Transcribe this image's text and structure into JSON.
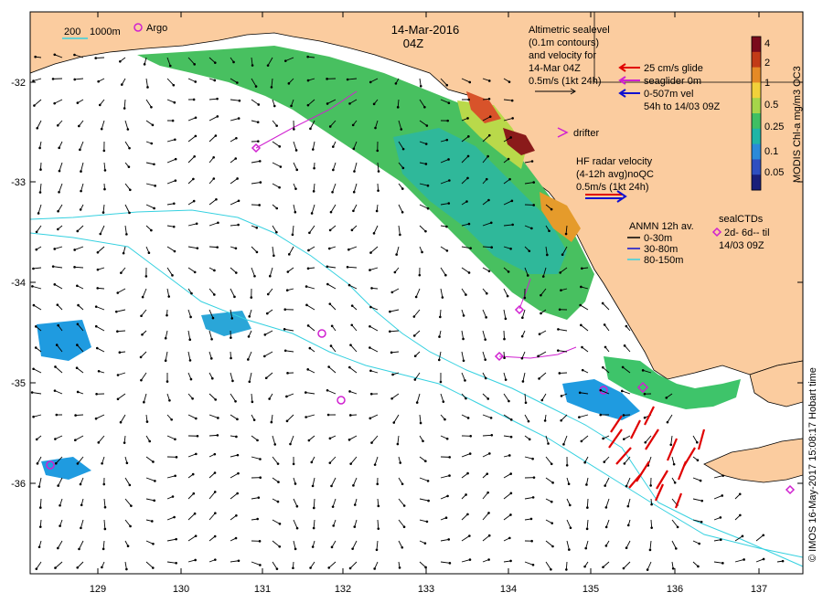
{
  "map": {
    "date_line": "14-Mar-2016",
    "time_line": "04Z",
    "lon_ticks": [
      "129",
      "130",
      "131",
      "132",
      "133",
      "134",
      "135",
      "136",
      "137"
    ],
    "lat_ticks": [
      "-32",
      "-33",
      "-34",
      "-35",
      "-36"
    ],
    "land_color": "#fbcc9f",
    "ocean_color": "#ffffff",
    "isobath_color": "#36d1e0"
  },
  "legend": {
    "isobath_200": "200",
    "isobath_1000": "1000m",
    "argo": "Argo",
    "alt_lines": [
      "Altimetric sealevel",
      "(0.1m contours)",
      "and velocity for",
      "14-Mar 04Z",
      "0.5m/s (1kt 24h)"
    ],
    "glide_scale": "25 cm/s glide",
    "seaglider": "seaglider 0m",
    "vel_lines": [
      "0-507m vel",
      "54h to 14/03 09Z"
    ],
    "drifter": "drifter",
    "hf_lines": [
      "HF radar velocity",
      "(4-12h avg)noQC",
      "0.5m/s (1kt 24h)"
    ],
    "anmn_title": "ANMN 12h av.",
    "anmn_items": [
      "0-30m",
      "30-80m",
      "80-150m"
    ],
    "seal_lines": [
      "sealCTDs",
      "2d- 6d-- til",
      "14/03 09Z"
    ]
  },
  "colorbar": {
    "label": "MODIS Chl-a mg/m3 OC3",
    "ticks": [
      "4",
      "2",
      "1",
      "0.5",
      "0.25",
      "0.1",
      "0.05"
    ],
    "colors": [
      "#7a0a1c",
      "#c23b17",
      "#e58a26",
      "#f2d13a",
      "#a6d54a",
      "#3fbf63",
      "#1fb5a6",
      "#2a8ad9",
      "#2f4fc0",
      "#1a1f7a"
    ]
  },
  "credit": "© IMOS 16-May-2017 15:08:17 Hobart time",
  "icons": [
    "argo-circle-icon",
    "seaglider-arrow-icon",
    "drifter-chevron-icon",
    "seal-diamond-icon"
  ]
}
